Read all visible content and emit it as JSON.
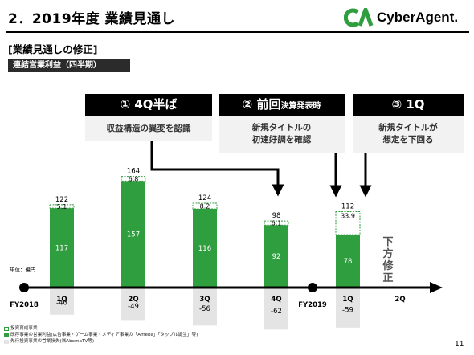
{
  "header": {
    "title": "2．2019年度 業績見通し",
    "logo_text": "CyberAgent.",
    "section_title": "[業績見通しの修正]",
    "metric_badge": "連結営業利益（四半期）",
    "unit_label": "単位：億円",
    "page_number": "11"
  },
  "phases": [
    {
      "head": "① 4Q半ば",
      "lines": [
        "収益構造の異変を認識"
      ]
    },
    {
      "head_main": "② 前回",
      "head_small": "決算発表時",
      "lines": [
        "新規タイトルの",
        "初速好調を確認"
      ]
    },
    {
      "head": "③ 1Q",
      "lines": [
        "新規タイトルが",
        "想定を下回る"
      ]
    }
  ],
  "chart_data": {
    "type": "bar",
    "categories": [
      "1Q",
      "2Q",
      "3Q",
      "4Q",
      "1Q",
      "2Q"
    ],
    "year_labels": [
      "FY2018",
      "FY2019"
    ],
    "series": [
      {
        "name": "投資育成事業",
        "values": [
          5.1,
          6.8,
          8.2,
          6.1,
          33.9,
          null
        ]
      },
      {
        "name": "既存事業の営業利益(広告事業・ゲーム事業・メディア事業の「Ameba」「タップル誕生」等)",
        "values": [
          117,
          157,
          116,
          92,
          78,
          null
        ]
      },
      {
        "name": "先行投資事業の営業損失(㈱AbemaTV等)",
        "values": [
          -40,
          -49,
          -56,
          -62,
          -59,
          null
        ]
      }
    ],
    "totals": [
      122,
      164,
      124,
      98,
      112,
      null
    ],
    "annotation": "下方修正",
    "colors": {
      "core": "#2e9e3e",
      "invest": "#ffffff",
      "invest_border": "#2e9e3e",
      "loss": "#e4e4e4",
      "frame": "#000000"
    }
  }
}
